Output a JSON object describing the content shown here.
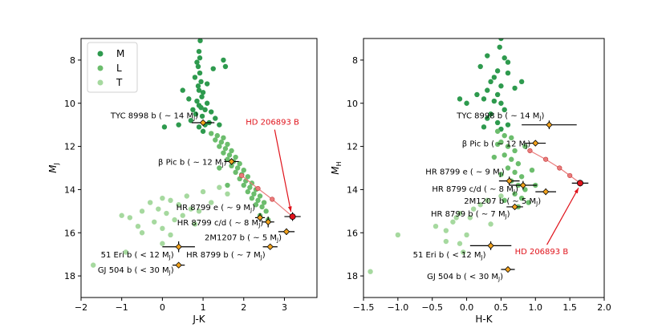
{
  "colors": {
    "M": "#2e9a4e",
    "L": "#6cbd6d",
    "T": "#a6d99f",
    "planet": "#f2a21c",
    "target": "#e0131b",
    "track": "#ea7b7b"
  },
  "legend": [
    {
      "label": "M",
      "color": "#2e9a4e"
    },
    {
      "label": "L",
      "color": "#6cbd6d"
    },
    {
      "label": "T",
      "color": "#a6d99f"
    }
  ],
  "chart_data": [
    {
      "type": "scatter",
      "title": "",
      "xlabel": "J-K",
      "ylabel": "M_J",
      "ylabel_main": "M",
      "ylabel_sub": "J",
      "xlim": [
        -2,
        3.8
      ],
      "ylim": [
        19,
        7
      ],
      "xticks": [
        -2,
        -1,
        0,
        1,
        2,
        3
      ],
      "xtick_labels": [
        "−2",
        "−1",
        "0",
        "1",
        "2",
        "3"
      ],
      "yticks": [
        8,
        10,
        12,
        14,
        16,
        18
      ],
      "ytick_labels": [
        "8",
        "10",
        "12",
        "14",
        "16",
        "18"
      ],
      "series": [
        {
          "name": "M",
          "points": [
            [
              0.93,
              7.1
            ],
            [
              0.9,
              7.6
            ],
            [
              0.92,
              7.9
            ],
            [
              0.85,
              8.1
            ],
            [
              0.88,
              8.3
            ],
            [
              0.92,
              8.6
            ],
            [
              0.8,
              8.8
            ],
            [
              0.95,
              9.0
            ],
            [
              0.88,
              9.2
            ],
            [
              0.5,
              9.4
            ],
            [
              0.9,
              9.4
            ],
            [
              1.0,
              9.5
            ],
            [
              0.97,
              9.7
            ],
            [
              0.65,
              9.8
            ],
            [
              0.85,
              9.9
            ],
            [
              1.1,
              10.0
            ],
            [
              0.9,
              10.1
            ],
            [
              0.95,
              10.2
            ],
            [
              0.75,
              10.3
            ],
            [
              1.05,
              10.3
            ],
            [
              1.2,
              10.4
            ],
            [
              0.82,
              10.5
            ],
            [
              0.98,
              10.6
            ],
            [
              1.3,
              10.7
            ],
            [
              0.7,
              10.8
            ],
            [
              1.15,
              10.9
            ],
            [
              0.4,
              11.0
            ],
            [
              1.05,
              11.0
            ],
            [
              1.4,
              11.0
            ],
            [
              0.9,
              11.1
            ],
            [
              0.05,
              11.1
            ],
            [
              1.0,
              11.3
            ],
            [
              1.5,
              8.0
            ],
            [
              1.55,
              8.3
            ],
            [
              1.25,
              8.4
            ],
            [
              1.1,
              9.1
            ]
          ]
        },
        {
          "name": "L",
          "points": [
            [
              1.2,
              11.4
            ],
            [
              1.35,
              11.5
            ],
            [
              1.5,
              11.6
            ],
            [
              1.3,
              11.7
            ],
            [
              1.45,
              11.8
            ],
            [
              1.6,
              11.9
            ],
            [
              1.4,
              12.0
            ],
            [
              1.55,
              12.1
            ],
            [
              1.7,
              12.2
            ],
            [
              1.5,
              12.3
            ],
            [
              1.65,
              12.4
            ],
            [
              1.8,
              12.5
            ],
            [
              1.6,
              12.6
            ],
            [
              1.75,
              12.7
            ],
            [
              1.9,
              12.8
            ],
            [
              1.7,
              12.9
            ],
            [
              1.85,
              13.0
            ],
            [
              2.0,
              13.1
            ],
            [
              1.8,
              13.2
            ],
            [
              1.95,
              13.3
            ],
            [
              2.1,
              13.4
            ],
            [
              1.9,
              13.5
            ],
            [
              2.05,
              13.6
            ],
            [
              2.2,
              13.7
            ],
            [
              2.0,
              13.8
            ],
            [
              2.15,
              13.9
            ],
            [
              2.3,
              14.0
            ],
            [
              2.1,
              14.1
            ],
            [
              2.25,
              14.2
            ],
            [
              2.4,
              14.3
            ],
            [
              2.2,
              14.4
            ],
            [
              2.35,
              14.5
            ],
            [
              2.5,
              14.6
            ],
            [
              2.3,
              14.7
            ],
            [
              2.45,
              14.8
            ],
            [
              2.55,
              15.0
            ],
            [
              2.4,
              15.2
            ],
            [
              2.6,
              15.4
            ],
            [
              1.4,
              13.0
            ],
            [
              1.6,
              13.8
            ]
          ]
        },
        {
          "name": "T",
          "points": [
            [
              1.4,
              13.9
            ],
            [
              1.0,
              14.1
            ],
            [
              0.6,
              14.3
            ],
            [
              0.2,
              14.5
            ],
            [
              0.0,
              14.4
            ],
            [
              -0.3,
              14.6
            ],
            [
              0.4,
              14.7
            ],
            [
              -0.1,
              14.9
            ],
            [
              -0.5,
              15.0
            ],
            [
              0.1,
              15.1
            ],
            [
              0.5,
              15.2
            ],
            [
              -0.8,
              15.3
            ],
            [
              0.3,
              15.4
            ],
            [
              -0.2,
              15.5
            ],
            [
              0.8,
              15.6
            ],
            [
              -0.6,
              15.7
            ],
            [
              0.0,
              15.8
            ],
            [
              -0.5,
              16.0
            ],
            [
              0.2,
              16.1
            ],
            [
              0.0,
              16.5
            ],
            [
              -0.9,
              16.9
            ],
            [
              -1.7,
              17.5
            ],
            [
              1.2,
              14.6
            ],
            [
              1.6,
              14.2
            ],
            [
              0.7,
              14.9
            ],
            [
              -1.0,
              15.2
            ],
            [
              0.9,
              15.0
            ]
          ]
        }
      ],
      "planets": [
        {
          "name": "TYC 8998 b",
          "mass": "~14",
          "x": 1.0,
          "y": 10.9,
          "xerr": 0.28,
          "yerr": 0.0,
          "label_side": "left",
          "dy": -0.35
        },
        {
          "name": "β Pic b",
          "mass": "~12",
          "x": 1.7,
          "y": 12.7,
          "xerr": 0.18,
          "yerr": 0.15,
          "label_side": "left",
          "dy": 0.0
        },
        {
          "name": "HR 8799 e",
          "mass": "~9",
          "x": 2.4,
          "y": 15.3,
          "xerr": 0.12,
          "yerr": 0.2,
          "label_side": "left",
          "dy": -0.5
        },
        {
          "name": "HR 8799 c/d",
          "mass": "~8",
          "x": 2.6,
          "y": 15.5,
          "xerr": 0.15,
          "yerr": 0.25,
          "label_side": "left",
          "dy": 0.0
        },
        {
          "name": "2M1207 b",
          "mass": "~5",
          "x": 3.05,
          "y": 15.95,
          "xerr": 0.2,
          "yerr": 0.15,
          "label_side": "left",
          "dy": 0.25
        },
        {
          "name": "HR 8799 b",
          "mass": "~7",
          "x": 2.65,
          "y": 16.65,
          "xerr": 0.18,
          "yerr": 0.1,
          "label_side": "below",
          "dy": 0.35
        },
        {
          "name": "51 Eri b",
          "mass": "<12",
          "x": 0.4,
          "y": 16.65,
          "xerr": 0.4,
          "yerr": 0.25,
          "label_side": "left",
          "dy": 0.35
        },
        {
          "name": "GJ 504 b",
          "mass": "<30",
          "x": 0.4,
          "y": 17.5,
          "xerr": 0.15,
          "yerr": 0.1,
          "label_side": "left",
          "dy": 0.2
        }
      ],
      "target": {
        "name": "HD 206893 B",
        "x": 3.2,
        "y": 15.25,
        "xerr": 0.2,
        "yerr": 0.2,
        "label_x": 2.05,
        "label_y": 11.0
      },
      "track": [
        [
          1.95,
          13.35
        ],
        [
          2.35,
          13.95
        ],
        [
          2.7,
          14.45
        ],
        [
          3.2,
          15.25
        ]
      ]
    },
    {
      "type": "scatter",
      "title": "",
      "xlabel": "H-K",
      "ylabel": "M_H",
      "ylabel_main": "M",
      "ylabel_sub": "H",
      "xlim": [
        -1.5,
        2.0
      ],
      "ylim": [
        19,
        7
      ],
      "xticks": [
        -1.5,
        -1.0,
        -0.5,
        0.0,
        0.5,
        1.0,
        1.5,
        2.0
      ],
      "xtick_labels": [
        "−1.5",
        "−1.0",
        "−0.5",
        "0.0",
        "0.5",
        "1.0",
        "1.5",
        "2.0"
      ],
      "yticks": [
        8,
        10,
        12,
        14,
        16,
        18
      ],
      "ytick_labels": [
        "8",
        "10",
        "12",
        "14",
        "16",
        "18"
      ],
      "series": [
        {
          "name": "M",
          "points": [
            [
              0.5,
              7.0
            ],
            [
              0.48,
              7.4
            ],
            [
              0.3,
              7.8
            ],
            [
              0.55,
              7.9
            ],
            [
              0.6,
              8.1
            ],
            [
              0.2,
              8.3
            ],
            [
              0.45,
              8.5
            ],
            [
              0.4,
              8.8
            ],
            [
              0.35,
              9.0
            ],
            [
              0.5,
              9.2
            ],
            [
              0.3,
              9.4
            ],
            [
              0.45,
              9.6
            ],
            [
              0.25,
              9.8
            ],
            [
              0.4,
              9.9
            ],
            [
              0.5,
              10.0
            ],
            [
              -0.1,
              9.8
            ],
            [
              0.0,
              10.0
            ],
            [
              0.55,
              10.3
            ],
            [
              0.35,
              10.5
            ],
            [
              0.3,
              10.7
            ],
            [
              0.45,
              10.9
            ],
            [
              0.6,
              11.0
            ],
            [
              0.25,
              11.1
            ],
            [
              0.5,
              11.2
            ],
            [
              0.6,
              8.6
            ],
            [
              0.7,
              9.3
            ],
            [
              0.8,
              9.0
            ],
            [
              0.15,
              9.6
            ]
          ]
        },
        {
          "name": "L",
          "points": [
            [
              0.45,
              11.3
            ],
            [
              0.55,
              11.5
            ],
            [
              0.65,
              11.6
            ],
            [
              0.5,
              11.8
            ],
            [
              0.6,
              12.0
            ],
            [
              0.7,
              12.2
            ],
            [
              0.55,
              12.4
            ],
            [
              0.65,
              12.6
            ],
            [
              0.75,
              12.8
            ],
            [
              0.6,
              13.0
            ],
            [
              0.7,
              13.2
            ],
            [
              0.8,
              13.4
            ],
            [
              0.65,
              13.6
            ],
            [
              0.75,
              13.8
            ],
            [
              0.85,
              14.0
            ],
            [
              0.7,
              14.2
            ],
            [
              0.8,
              14.4
            ],
            [
              0.9,
              14.6
            ],
            [
              0.75,
              14.8
            ],
            [
              0.5,
              13.3
            ],
            [
              0.95,
              13.1
            ],
            [
              0.4,
              12.5
            ],
            [
              0.85,
              12.0
            ],
            [
              0.55,
              14.5
            ],
            [
              1.0,
              13.8
            ],
            [
              0.45,
              11.9
            ]
          ]
        },
        {
          "name": "T",
          "points": [
            [
              0.5,
              14.3
            ],
            [
              0.3,
              14.5
            ],
            [
              0.2,
              14.7
            ],
            [
              0.1,
              14.9
            ],
            [
              -0.1,
              15.1
            ],
            [
              0.05,
              15.3
            ],
            [
              -0.2,
              15.5
            ],
            [
              -0.45,
              15.7
            ],
            [
              -0.3,
              15.9
            ],
            [
              -0.15,
              15.3
            ],
            [
              -0.3,
              16.4
            ],
            [
              -0.1,
              16.5
            ],
            [
              -0.05,
              16.9
            ],
            [
              -1.0,
              16.1
            ],
            [
              -1.4,
              17.8
            ],
            [
              0.35,
              15.6
            ],
            [
              0.0,
              16.1
            ]
          ]
        }
      ],
      "planets": [
        {
          "name": "TYC 8998 b",
          "mass": "~14",
          "x": 1.2,
          "y": 11.0,
          "xerr": 0.4,
          "yerr": 0.2,
          "label_side": "left",
          "dy": -0.45
        },
        {
          "name": "β Pic b",
          "mass": "~12",
          "x": 1.0,
          "y": 11.85,
          "xerr": 0.15,
          "yerr": 0.1,
          "label_side": "left",
          "dy": 0.0
        },
        {
          "name": "HR 8799 e",
          "mass": "~9",
          "x": 0.62,
          "y": 13.6,
          "xerr": 0.15,
          "yerr": 0.2,
          "label_side": "left",
          "dy": -0.45
        },
        {
          "name": "HR 8799 c/d",
          "mass": "~8",
          "x": 0.82,
          "y": 13.8,
          "xerr": 0.2,
          "yerr": 0.2,
          "label_side": "left",
          "dy": 0.15
        },
        {
          "name": "2M1207 b",
          "mass": "~5",
          "x": 1.15,
          "y": 14.1,
          "xerr": 0.15,
          "yerr": 0.15,
          "label_side": "left",
          "dy": 0.4
        },
        {
          "name": "HR 8799 b",
          "mass": "~7",
          "x": 0.7,
          "y": 14.8,
          "xerr": 0.12,
          "yerr": 0.1,
          "label_side": "left",
          "dy": 0.3
        },
        {
          "name": "51 Eri b",
          "mass": "<12",
          "x": 0.35,
          "y": 16.6,
          "xerr": 0.3,
          "yerr": 0.2,
          "label_side": "left",
          "dy": 0.4
        },
        {
          "name": "GJ 504 b",
          "mass": "<30",
          "x": 0.6,
          "y": 17.7,
          "xerr": 0.1,
          "yerr": 0.1,
          "label_side": "left",
          "dy": 0.3
        }
      ],
      "target": {
        "name": "HD 206893 B",
        "x": 1.65,
        "y": 13.7,
        "xerr": 0.12,
        "yerr": 0.15,
        "label_x": 0.7,
        "label_y": 17.0
      },
      "track": [
        [
          0.92,
          12.2
        ],
        [
          1.15,
          12.6
        ],
        [
          1.35,
          13.0
        ],
        [
          1.5,
          13.35
        ],
        [
          1.65,
          13.7
        ]
      ]
    }
  ]
}
